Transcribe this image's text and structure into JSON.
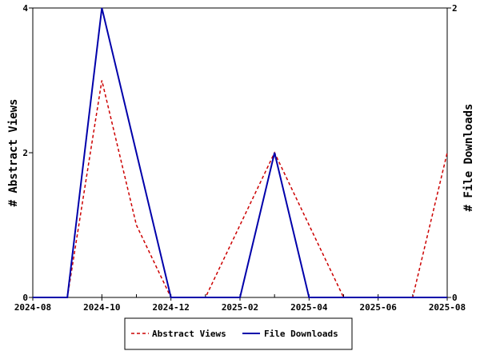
{
  "chart_data": {
    "type": "line",
    "x_type": "time-month",
    "x_range": [
      "2024-08",
      "2025-08"
    ],
    "x_ticks": [
      "2024-08",
      "2024-10",
      "2024-12",
      "2025-02",
      "2025-04",
      "2025-06",
      "2025-08"
    ],
    "left_axis": {
      "label": "# Abstract Views",
      "range": [
        0,
        4
      ],
      "ticks": [
        "0",
        "2",
        "4"
      ]
    },
    "right_axis": {
      "label": "# File Downloads",
      "range": [
        0,
        2
      ],
      "ticks": [
        "0",
        "2"
      ]
    },
    "series": [
      {
        "name": "Abstract Views",
        "axis": "left",
        "color": "#cc0000",
        "dash": "dashed",
        "points": [
          [
            "2024-08",
            0
          ],
          [
            "2024-09",
            0
          ],
          [
            "2024-10",
            3
          ],
          [
            "2024-11",
            1
          ],
          [
            "2024-12",
            0
          ],
          [
            "2025-01",
            0
          ],
          [
            "2025-02",
            1
          ],
          [
            "2025-03",
            2
          ],
          [
            "2025-04",
            1
          ],
          [
            "2025-05",
            0
          ],
          [
            "2025-06",
            0
          ],
          [
            "2025-07",
            0
          ],
          [
            "2025-08",
            2
          ]
        ]
      },
      {
        "name": "File Downloads",
        "axis": "right",
        "color": "#0000aa",
        "dash": "solid",
        "points": [
          [
            "2024-08",
            0
          ],
          [
            "2024-09",
            0
          ],
          [
            "2024-10",
            2
          ],
          [
            "2024-11",
            1
          ],
          [
            "2024-12",
            0
          ],
          [
            "2025-01",
            0
          ],
          [
            "2025-02",
            0
          ],
          [
            "2025-03",
            1
          ],
          [
            "2025-04",
            0
          ],
          [
            "2025-05",
            0
          ],
          [
            "2025-06",
            0
          ],
          [
            "2025-07",
            0
          ],
          [
            "2025-08",
            0
          ]
        ]
      }
    ],
    "grid": false,
    "legend_position": "bottom-center"
  }
}
